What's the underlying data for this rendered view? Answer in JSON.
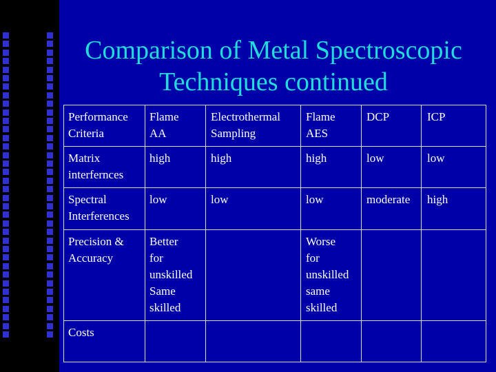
{
  "slide": {
    "title": "Comparison of Metal Spectroscopic Techniques continued"
  },
  "table": {
    "headers": [
      [
        "Performance",
        "Criteria"
      ],
      [
        "Flame",
        "AA"
      ],
      [
        "Electrothermal",
        "Sampling"
      ],
      [
        "Flame",
        "AES"
      ],
      [
        "DCP"
      ],
      [
        "ICP"
      ]
    ],
    "rows": [
      [
        [
          "Matrix",
          "interfernces"
        ],
        [
          "high"
        ],
        [
          "high"
        ],
        [
          "high"
        ],
        [
          "low"
        ],
        [
          "low"
        ]
      ],
      [
        [
          "Spectral",
          "Interferences"
        ],
        [
          "low"
        ],
        [
          "low"
        ],
        [
          "low"
        ],
        [
          "moderate"
        ],
        [
          "high"
        ]
      ],
      [
        [
          "Precision &",
          "Accuracy"
        ],
        [
          "Better",
          "for",
          "unskilled",
          "Same",
          "skilled"
        ],
        [],
        [
          "Worse",
          "for",
          "unskilled",
          "same",
          "skilled"
        ],
        [],
        []
      ],
      [
        [
          "Costs"
        ],
        [],
        [],
        [],
        [],
        []
      ]
    ]
  },
  "colors": {
    "background": "#0000a8",
    "left_band": "#000000",
    "band_squares": "#2f2fd2",
    "title": "#22dcdc",
    "text": "#ffffff",
    "grid_lines": "#d8d8e8"
  }
}
